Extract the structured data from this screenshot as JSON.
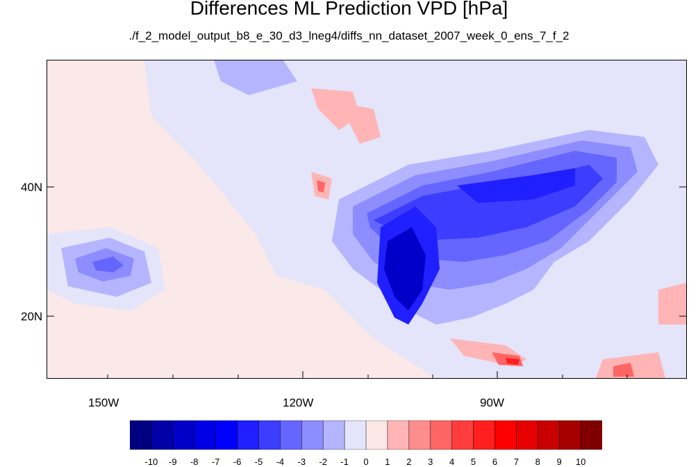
{
  "title": "Differences ML Prediction VPD [hPa]",
  "subtitle": "./f_2_model_output_b8_e_30_d3_lneg4/diffs_nn_dataset_2007_week_0_ens_7_f_2",
  "lat_labels": [
    "40N",
    "20N"
  ],
  "lon_labels": [
    "150W",
    "120W",
    "90W"
  ],
  "colorbar": {
    "labels": [
      "-10",
      "-9",
      "-8",
      "-7",
      "-6",
      "-5",
      "-4",
      "-3",
      "-2",
      "-1",
      "0",
      "1",
      "2",
      "3",
      "4",
      "5",
      "6",
      "7",
      "8",
      "9",
      "10"
    ],
    "colors": [
      "#000080",
      "#0000a6",
      "#0000c8",
      "#0000e6",
      "#0000ff",
      "#1f1fff",
      "#3d3dff",
      "#6565ff",
      "#8d8dff",
      "#b5b5ff",
      "#e4e4fa",
      "#fce7e7",
      "#ffb5b5",
      "#ff8d8d",
      "#ff6565",
      "#ff3d3d",
      "#ff1f1f",
      "#ff0000",
      "#e60000",
      "#c80000",
      "#a60000",
      "#800000"
    ]
  },
  "palette": {
    "ocean_pink": "#fbe8e8",
    "light_blue": "#e4e4fa",
    "blue1": "#b5b5ff",
    "blue2": "#8d8dff",
    "blue3": "#6565ff",
    "blue4": "#3d3dff",
    "blue5": "#1f1fff",
    "blue6": "#0000c8",
    "pink1": "#ffb5b5",
    "red1": "#ff6565",
    "red2": "#ff1f1f"
  }
}
